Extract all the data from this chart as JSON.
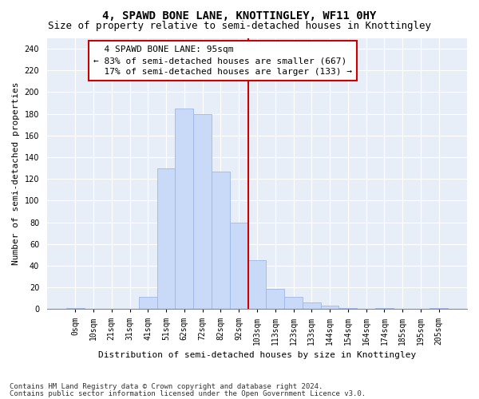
{
  "title": "4, SPAWD BONE LANE, KNOTTINGLEY, WF11 0HY",
  "subtitle": "Size of property relative to semi-detached houses in Knottingley",
  "xlabel": "Distribution of semi-detached houses by size in Knottingley",
  "ylabel": "Number of semi-detached properties",
  "footnote1": "Contains HM Land Registry data © Crown copyright and database right 2024.",
  "footnote2": "Contains public sector information licensed under the Open Government Licence v3.0.",
  "bar_labels": [
    "0sqm",
    "10sqm",
    "21sqm",
    "31sqm",
    "41sqm",
    "51sqm",
    "62sqm",
    "72sqm",
    "82sqm",
    "92sqm",
    "103sqm",
    "113sqm",
    "123sqm",
    "133sqm",
    "144sqm",
    "154sqm",
    "164sqm",
    "174sqm",
    "185sqm",
    "195sqm",
    "205sqm"
  ],
  "bar_heights": [
    1,
    0,
    0,
    0,
    11,
    130,
    185,
    180,
    127,
    80,
    45,
    19,
    11,
    6,
    3,
    1,
    0,
    1,
    0,
    0,
    1
  ],
  "property_label": "4 SPAWD BONE LANE: 95sqm",
  "pct_smaller": 83,
  "pct_larger": 17,
  "count_smaller": 667,
  "count_larger": 133,
  "bar_color": "#c9daf8",
  "bar_edge_color": "#9db8e8",
  "vline_color": "#cc0000",
  "box_edge_color": "#cc0000",
  "ylim": [
    0,
    250
  ],
  "yticks": [
    0,
    20,
    40,
    60,
    80,
    100,
    120,
    140,
    160,
    180,
    200,
    220,
    240
  ],
  "title_fontsize": 10,
  "subtitle_fontsize": 9,
  "axis_label_fontsize": 8,
  "tick_fontsize": 7,
  "annotation_fontsize": 8,
  "footnote_fontsize": 6.5,
  "vline_bar_index": 9
}
